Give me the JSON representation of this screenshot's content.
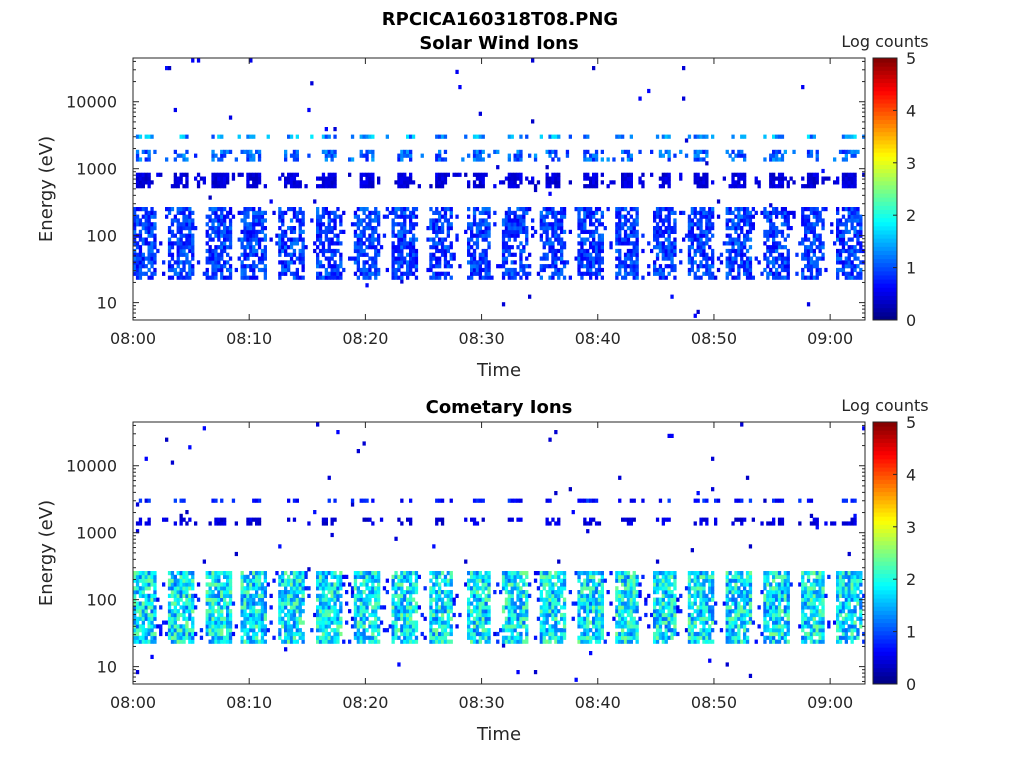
{
  "figure_title": "RPCICA160318T08.PNG",
  "colorbar_ticks": [
    "0",
    "1",
    "2",
    "3",
    "4",
    "5"
  ],
  "chart_data": [
    {
      "type": "heatmap",
      "title": "Solar Wind Ions",
      "xlabel": "Time",
      "ylabel": "Energy (eV)",
      "colorbar_label": "Log counts",
      "color_scale": "jet",
      "clim": [
        0,
        5
      ],
      "y_scale": "log",
      "ylim": [
        5.5,
        45000
      ],
      "xlim": [
        "08:00",
        "09:03"
      ],
      "x_ticks": [
        "08:00",
        "08:10",
        "08:20",
        "08:30",
        "08:40",
        "08:50",
        "09:00"
      ],
      "y_ticks": [
        "10",
        "100",
        "1000",
        "10000"
      ],
      "bursts_minutes": [
        0.8,
        4.0,
        7.2,
        10.3,
        13.5,
        16.7,
        20.0,
        23.2,
        26.4,
        29.6,
        32.8,
        36.0,
        39.2,
        42.4,
        45.6,
        48.8,
        52.0,
        55.2,
        58.4,
        61.5
      ],
      "bands": [
        {
          "e_min": 22,
          "e_max": 260,
          "level": 1.0,
          "fill": 0.7
        },
        {
          "e_min": 500,
          "e_max": 800,
          "level": 0.5,
          "fill": 0.5
        },
        {
          "e_min": 1200,
          "e_max": 1800,
          "level": 1.2,
          "fill": 0.3
        },
        {
          "e_min": 2500,
          "e_max": 3200,
          "level": 1.5,
          "fill": 0.3
        }
      ]
    },
    {
      "type": "heatmap",
      "title": "Cometary Ions",
      "xlabel": "Time",
      "ylabel": "Energy (eV)",
      "colorbar_label": "Log counts",
      "color_scale": "jet",
      "clim": [
        0,
        5
      ],
      "y_scale": "log",
      "ylim": [
        5.5,
        45000
      ],
      "xlim": [
        "08:00",
        "09:03"
      ],
      "x_ticks": [
        "08:00",
        "08:10",
        "08:20",
        "08:30",
        "08:40",
        "08:50",
        "09:00"
      ],
      "y_ticks": [
        "10",
        "100",
        "1000",
        "10000"
      ],
      "bursts_minutes": [
        0.8,
        4.0,
        7.2,
        10.3,
        13.5,
        16.7,
        20.0,
        23.2,
        26.4,
        29.6,
        32.8,
        36.0,
        39.2,
        42.4,
        45.6,
        48.8,
        52.0,
        55.2,
        58.4,
        61.5
      ],
      "bands": [
        {
          "e_min": 22,
          "e_max": 260,
          "level": 2.0,
          "fill": 0.85
        },
        {
          "e_min": 1200,
          "e_max": 1500,
          "level": 0.5,
          "fill": 0.2
        },
        {
          "e_min": 2500,
          "e_max": 3200,
          "level": 0.8,
          "fill": 0.25
        }
      ]
    }
  ]
}
